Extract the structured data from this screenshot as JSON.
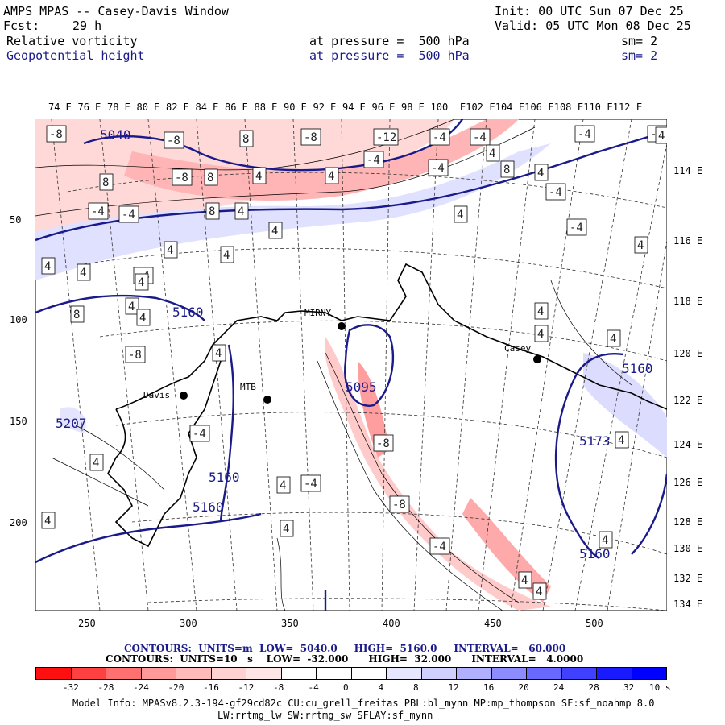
{
  "header": {
    "title": "AMPS MPAS -- Casey-Davis Window",
    "init": "Init: 00 UTC Sun 07 Dec 25",
    "fcst_label": "Fcst:",
    "fcst_value": "29 h",
    "valid": "Valid: 05 UTC Mon 08 Dec 25",
    "field1": "Relative vorticity",
    "field1_level": "at pressure =  500 hPa",
    "field1_sm": "sm= 2",
    "field2": "Geopotential height",
    "field2_level": "at pressure =  500 hPa",
    "field2_sm": "sm= 2"
  },
  "top_lon_labels": [
    "74 E",
    "76 E",
    "78 E",
    "80 E",
    "82 E",
    "84 E",
    "86 E",
    "88 E",
    "90 E",
    "92 E",
    "94 E",
    "96 E",
    "98 E",
    "100",
    "E102",
    "E104",
    "E106",
    "E108",
    "E110",
    "E112",
    "E"
  ],
  "right_lon_labels": [
    "114 E",
    "116 E",
    "118 E",
    "120 E",
    "122 E",
    "124 E",
    "126 E",
    "128 E",
    "130 E",
    "132 E",
    "134 E"
  ],
  "y_axis": [
    "50",
    "100",
    "150",
    "200"
  ],
  "x_axis": [
    "250",
    "300",
    "350",
    "400",
    "450",
    "500"
  ],
  "stations": [
    {
      "name": "Davis"
    },
    {
      "name": "MTB"
    },
    {
      "name": "MIRNY"
    },
    {
      "name": "Casey"
    }
  ],
  "height_labels": [
    "5040",
    "5160",
    "5160",
    "5160",
    "5160",
    "5160",
    "5095",
    "5207",
    "5173"
  ],
  "vort_labels": [
    "-8",
    "-8",
    "8",
    "-8",
    "-12",
    "-4",
    "-4",
    "-4",
    "-8",
    "8",
    "-8",
    "8",
    "4",
    "4",
    "-4",
    "-4",
    "8",
    "4",
    "-4",
    "-4",
    "8",
    "4",
    "4",
    "4",
    "-4",
    "4",
    "4",
    "4",
    "-4",
    "4",
    "4",
    "8",
    "4",
    "4",
    "-8",
    "4",
    "4",
    "-4",
    "4",
    "4",
    "4",
    "4",
    "4",
    "-8",
    "4",
    "-4",
    "4",
    "-8",
    "4",
    "4",
    "-4",
    "4",
    "4",
    "4",
    "4",
    "-4"
  ],
  "contour_info": {
    "line1": "CONTOURS:  UNITS=m  LOW=  5040.0     HIGH=  5160.0     INTERVAL=   60.000",
    "line2": "CONTOURS:  UNITS=10   s    LOW=  -32.000      HIGH=  32.000      INTERVAL=   4.0000"
  },
  "colorbar": {
    "labels": [
      "-32",
      "-28",
      "-24",
      "-20",
      "-16",
      "-12",
      "-8",
      "-4",
      "0",
      "4",
      "8",
      "12",
      "16",
      "20",
      "24",
      "28",
      "32"
    ],
    "unit": "10   s",
    "colors": [
      "#ff1010",
      "#ff4040",
      "#ff7070",
      "#ff9a9a",
      "#ffbaba",
      "#ffd2d2",
      "#ffe6e6",
      "#ffffff",
      "#ffffff",
      "#ffffff",
      "#e6e6ff",
      "#d0d0ff",
      "#b0b0ff",
      "#8c8cff",
      "#6868ff",
      "#4040ff",
      "#1a1aff",
      "#0000ff"
    ]
  },
  "model_info": {
    "line1": "Model Info: MPASv8.2.3-194-gf29cd82c CU:cu_grell_freitas PBL:bl_mynn MP:mp_thompson SF:sf_noahmp 8.0",
    "line2": "LW:rrtmg_lw SW:rrtmg_sw SFLAY:sf_mynn"
  },
  "colors": {
    "height_contour": "#1a1a8a",
    "neg_vort": "#ffc8c8",
    "pos_vort": "#dcdcff",
    "coast": "#000000"
  }
}
